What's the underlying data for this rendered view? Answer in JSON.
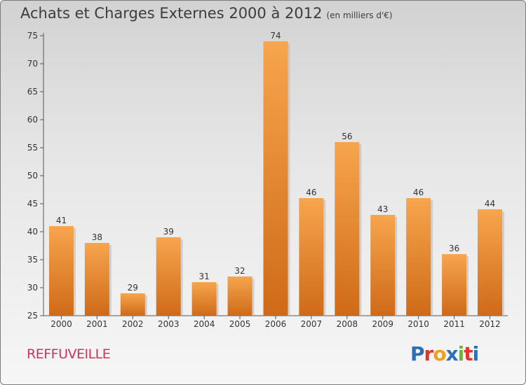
{
  "title": "Achats et Charges Externes 2000 à 2012",
  "unit": "(en milliers d'€)",
  "commune": "REFFUVEILLE",
  "logo": "Proxiti",
  "colors": {
    "bar_top": "#f7a54e",
    "bar_bottom": "#cf6a18",
    "label": "#333333"
  },
  "chart_data": {
    "type": "bar",
    "categories": [
      "2000",
      "2001",
      "2002",
      "2003",
      "2004",
      "2005",
      "2006",
      "2007",
      "2008",
      "2009",
      "2010",
      "2011",
      "2012"
    ],
    "values": [
      41,
      38,
      29,
      39,
      31,
      32,
      74,
      46,
      56,
      43,
      46,
      36,
      44
    ],
    "ylim": [
      25,
      75
    ],
    "yticks": [
      25,
      30,
      35,
      40,
      45,
      50,
      55,
      60,
      65,
      70,
      75
    ],
    "grid": false
  }
}
